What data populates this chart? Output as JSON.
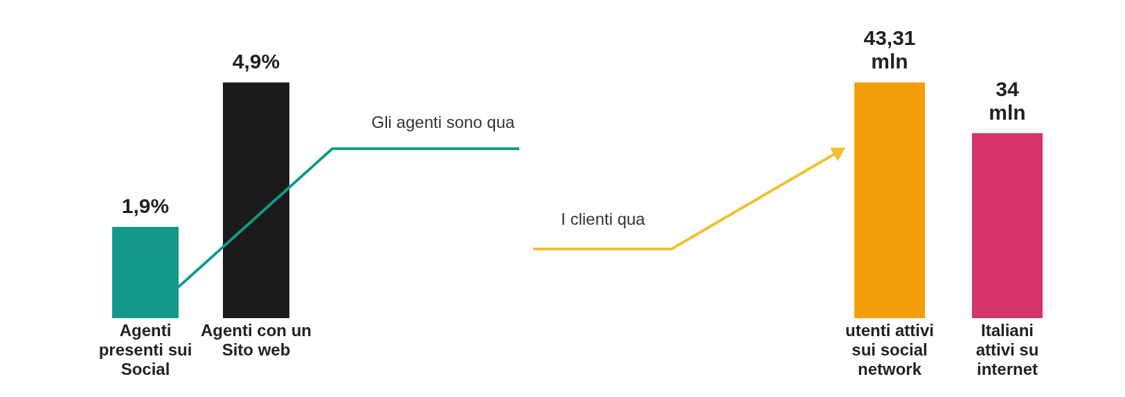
{
  "chart_data": [
    {
      "type": "bar",
      "categories": [
        "Agenti presenti sui Social",
        "Agenti con un Sito web"
      ],
      "values": [
        1.9,
        4.9
      ],
      "colors": [
        "#13998a",
        "#1a1a1a"
      ],
      "data_labels": true,
      "value_labels": [
        "1,9%",
        "4,9%"
      ],
      "annotations": [
        "Gli agenti sono qua"
      ]
    },
    {
      "type": "bar",
      "categories": [
        "utenti attivi sui social network",
        "Italiani attivi su internet"
      ],
      "values": [
        43.31,
        34
      ],
      "colors": [
        "#f59e0b",
        "#d6336c"
      ],
      "data_labels": true,
      "value_labels": [
        "43,31 mln",
        "34 mln"
      ],
      "annotations": [
        "I clienti qua"
      ]
    }
  ]
}
